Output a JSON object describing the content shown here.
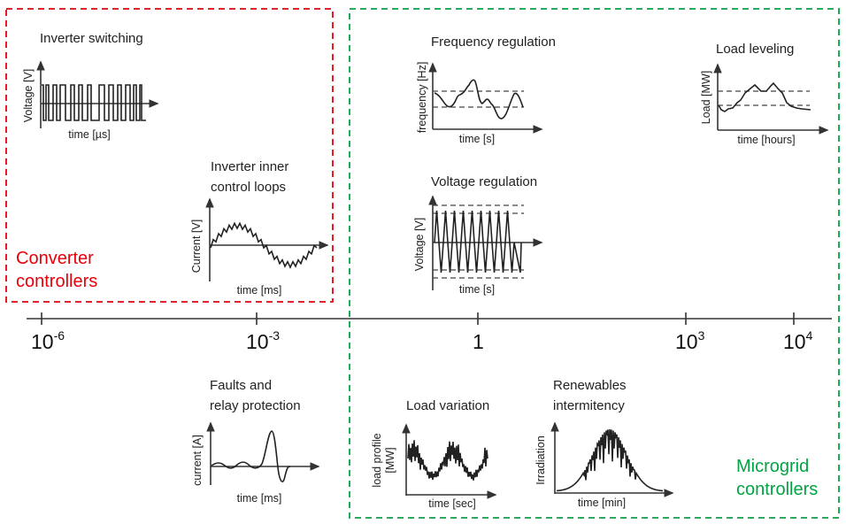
{
  "colors": {
    "converter": "#e8000b",
    "microgrid": "#00a443",
    "ink": "#222222"
  },
  "groups": {
    "converter": {
      "line1": "Converter",
      "line2": "controllers"
    },
    "microgrid": {
      "line1": "Microgrid",
      "line2": "controllers"
    }
  },
  "timescale": {
    "ticks": [
      {
        "base": "10",
        "exp": "-6"
      },
      {
        "base": "10",
        "exp": "-3"
      },
      {
        "base": "1",
        "exp": ""
      },
      {
        "base": "10",
        "exp": "3"
      },
      {
        "base": "10",
        "exp": "4"
      }
    ]
  },
  "panels": {
    "inverter_switching": {
      "title": "Inverter switching",
      "ylabel": "Voltage [V]",
      "xlabel": "time [µs]"
    },
    "inner_loops": {
      "title1": "Inverter inner",
      "title2": "control loops",
      "ylabel": "Current [V]",
      "xlabel": "time [ms]"
    },
    "frequency": {
      "title": "Frequency regulation",
      "ylabel": "frequency [Hz]",
      "xlabel": "time [s]"
    },
    "load_leveling": {
      "title": "Load leveling",
      "ylabel": "Load [MW]",
      "xlabel": "time [hours]"
    },
    "voltage": {
      "title": "Voltage regulation",
      "ylabel": "Voltage [V]",
      "xlabel": "time [s]"
    },
    "faults": {
      "title1": "Faults and",
      "title2": "relay protection",
      "ylabel": "current [A]",
      "xlabel": "time [ms]"
    },
    "load_variation": {
      "title": "Load variation",
      "ylabel1": "load profile",
      "ylabel2": "[MW]",
      "xlabel": "time [sec]"
    },
    "renewables": {
      "title1": "Renewables",
      "title2": "intermitency",
      "ylabel": "Irradiation",
      "xlabel": "time [min]"
    }
  }
}
